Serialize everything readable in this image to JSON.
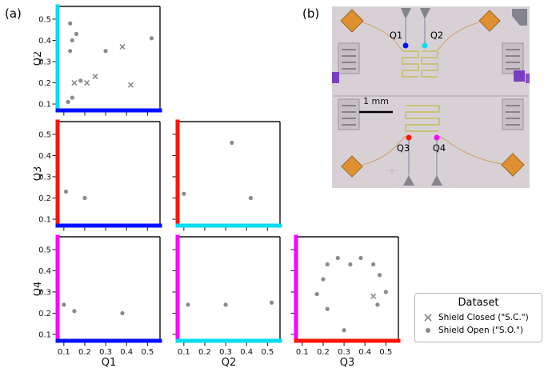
{
  "panels": {
    "a": "(a)",
    "b": "(b)"
  },
  "colors": {
    "q1": "#0010ff",
    "q2": "#00dcf0",
    "q3": "#ff1500",
    "q4": "#ff00ff",
    "marker": "#8a8a8a"
  },
  "chart_data": [
    {
      "id": "q2-vs-q1",
      "type": "scatter",
      "xlabel": "Q1",
      "ylabel": "Q2",
      "x_color": "q1",
      "y_color": "q2",
      "xlim": [
        0.07,
        0.56
      ],
      "ylim": [
        0.07,
        0.56
      ],
      "xticks": [
        0.1,
        0.2,
        0.3,
        0.4,
        0.5
      ],
      "yticks": [
        0.1,
        0.2,
        0.3,
        0.4,
        0.5
      ],
      "show_x_tick_labels": false,
      "show_y_tick_labels": true,
      "show_xlabel": false,
      "show_ylabel": true,
      "series": [
        {
          "name": "Shield Closed (\"S.C.\")",
          "marker": "x",
          "points": [
            [
              0.38,
              0.37
            ],
            [
              0.25,
              0.23
            ],
            [
              0.15,
              0.2
            ],
            [
              0.21,
              0.2
            ],
            [
              0.42,
              0.19
            ]
          ]
        },
        {
          "name": "Shield Open (\"S.O.\")",
          "marker": "dot",
          "points": [
            [
              0.13,
              0.48
            ],
            [
              0.16,
              0.43
            ],
            [
              0.14,
              0.4
            ],
            [
              0.52,
              0.41
            ],
            [
              0.13,
              0.35
            ],
            [
              0.3,
              0.35
            ],
            [
              0.18,
              0.21
            ],
            [
              0.14,
              0.13
            ],
            [
              0.12,
              0.11
            ]
          ]
        }
      ]
    },
    {
      "id": "q3-vs-q1",
      "type": "scatter",
      "xlabel": "Q1",
      "ylabel": "Q3",
      "x_color": "q1",
      "y_color": "q3",
      "xlim": [
        0.07,
        0.56
      ],
      "ylim": [
        0.07,
        0.56
      ],
      "xticks": [
        0.1,
        0.2,
        0.3,
        0.4,
        0.5
      ],
      "yticks": [
        0.1,
        0.2,
        0.3,
        0.4,
        0.5
      ],
      "show_x_tick_labels": false,
      "show_y_tick_labels": true,
      "show_xlabel": false,
      "show_ylabel": true,
      "series": [
        {
          "name": "Shield Closed (\"S.C.\")",
          "marker": "x",
          "points": []
        },
        {
          "name": "Shield Open (\"S.O.\")",
          "marker": "dot",
          "points": [
            [
              0.11,
              0.23
            ],
            [
              0.2,
              0.2
            ]
          ]
        }
      ]
    },
    {
      "id": "q3-vs-q2",
      "type": "scatter",
      "xlabel": "Q2",
      "ylabel": "Q3",
      "x_color": "q2",
      "y_color": "q3",
      "xlim": [
        0.07,
        0.56
      ],
      "ylim": [
        0.07,
        0.56
      ],
      "xticks": [
        0.1,
        0.2,
        0.3,
        0.4,
        0.5
      ],
      "yticks": [
        0.1,
        0.2,
        0.3,
        0.4,
        0.5
      ],
      "show_x_tick_labels": false,
      "show_y_tick_labels": false,
      "show_xlabel": false,
      "show_ylabel": false,
      "series": [
        {
          "name": "Shield Closed (\"S.C.\")",
          "marker": "x",
          "points": []
        },
        {
          "name": "Shield Open (\"S.O.\")",
          "marker": "dot",
          "points": [
            [
              0.33,
              0.46
            ],
            [
              0.1,
              0.22
            ],
            [
              0.42,
              0.2
            ]
          ]
        }
      ]
    },
    {
      "id": "q4-vs-q1",
      "type": "scatter",
      "xlabel": "Q1",
      "ylabel": "Q4",
      "x_color": "q1",
      "y_color": "q4",
      "xlim": [
        0.07,
        0.56
      ],
      "ylim": [
        0.07,
        0.56
      ],
      "xticks": [
        0.1,
        0.2,
        0.3,
        0.4,
        0.5
      ],
      "yticks": [
        0.1,
        0.2,
        0.3,
        0.4,
        0.5
      ],
      "show_x_tick_labels": true,
      "show_y_tick_labels": true,
      "show_xlabel": true,
      "show_ylabel": true,
      "series": [
        {
          "name": "Shield Closed (\"S.C.\")",
          "marker": "x",
          "points": []
        },
        {
          "name": "Shield Open (\"S.O.\")",
          "marker": "dot",
          "points": [
            [
              0.1,
              0.24
            ],
            [
              0.15,
              0.21
            ],
            [
              0.38,
              0.2
            ]
          ]
        }
      ]
    },
    {
      "id": "q4-vs-q2",
      "type": "scatter",
      "xlabel": "Q2",
      "ylabel": "Q4",
      "x_color": "q2",
      "y_color": "q4",
      "xlim": [
        0.07,
        0.56
      ],
      "ylim": [
        0.07,
        0.56
      ],
      "xticks": [
        0.1,
        0.2,
        0.3,
        0.4,
        0.5
      ],
      "yticks": [
        0.1,
        0.2,
        0.3,
        0.4,
        0.5
      ],
      "show_x_tick_labels": true,
      "show_y_tick_labels": false,
      "show_xlabel": true,
      "show_ylabel": false,
      "series": [
        {
          "name": "Shield Closed (\"S.C.\")",
          "marker": "x",
          "points": []
        },
        {
          "name": "Shield Open (\"S.O.\")",
          "marker": "dot",
          "points": [
            [
              0.12,
              0.24
            ],
            [
              0.3,
              0.24
            ],
            [
              0.52,
              0.25
            ]
          ]
        }
      ]
    },
    {
      "id": "q4-vs-q3",
      "type": "scatter",
      "xlabel": "Q3",
      "ylabel": "Q4",
      "x_color": "q3",
      "y_color": "q4",
      "xlim": [
        0.07,
        0.56
      ],
      "ylim": [
        0.07,
        0.56
      ],
      "xticks": [
        0.1,
        0.2,
        0.3,
        0.4,
        0.5
      ],
      "yticks": [
        0.1,
        0.2,
        0.3,
        0.4,
        0.5
      ],
      "show_x_tick_labels": true,
      "show_y_tick_labels": false,
      "show_xlabel": true,
      "show_ylabel": false,
      "series": [
        {
          "name": "Shield Closed (\"S.C.\")",
          "marker": "x",
          "points": [
            [
              0.44,
              0.28
            ]
          ]
        },
        {
          "name": "Shield Open (\"S.O.\")",
          "marker": "dot",
          "points": [
            [
              0.22,
              0.43
            ],
            [
              0.27,
              0.46
            ],
            [
              0.33,
              0.43
            ],
            [
              0.38,
              0.46
            ],
            [
              0.44,
              0.43
            ],
            [
              0.47,
              0.38
            ],
            [
              0.5,
              0.3
            ],
            [
              0.46,
              0.24
            ],
            [
              0.2,
              0.36
            ],
            [
              0.17,
              0.29
            ],
            [
              0.22,
              0.22
            ],
            [
              0.3,
              0.12
            ]
          ]
        }
      ]
    }
  ],
  "legend": {
    "title": "Dataset",
    "items": [
      {
        "marker": "x",
        "label": "Shield Closed (\"S.C.\")"
      },
      {
        "marker": "dot",
        "label": "Shield Open (\"S.O.\")"
      }
    ]
  },
  "chip": {
    "qubits": [
      {
        "label": "Q1",
        "color": "q1"
      },
      {
        "label": "Q2",
        "color": "q2"
      },
      {
        "label": "Q3",
        "color": "q3"
      },
      {
        "label": "Q4",
        "color": "q4"
      }
    ],
    "scale_bar": "1 mm"
  }
}
